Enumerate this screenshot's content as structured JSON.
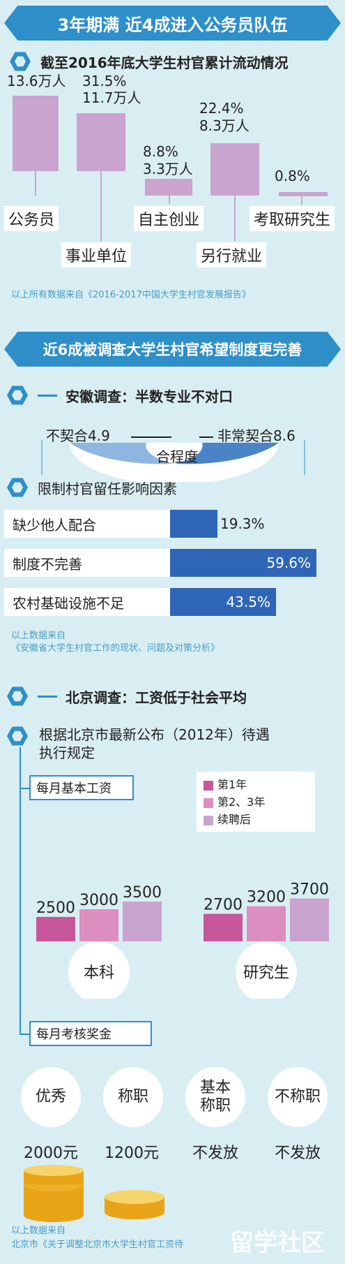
{
  "banner1": "3年期满 近4成进入公务员队伍",
  "sec1": {
    "title": "截至2016年底大学生村官累计流动情况",
    "items": [
      {
        "label": "公务员",
        "pct": "",
        "count": "13.6万人"
      },
      {
        "label": "事业单位",
        "pct": "31.5%",
        "count": "11.7万人"
      },
      {
        "label": "自主创业",
        "pct": "8.8%",
        "count": "3.3万人"
      },
      {
        "label": "另行就业",
        "pct": "22.4%",
        "count": "8.3万人"
      },
      {
        "label": "考取研究生",
        "pct": "0.8%",
        "count": ""
      }
    ],
    "source": "以上所有数据来自《2016-2017中国大学生村官发展报告》"
  },
  "banner2": "近6成被调查大学生村官希望制度更完善",
  "anhui": {
    "title": "安徽调查：半数专业不对口",
    "left_label": "不契合4.9",
    "right_label": "非常契合8.6",
    "center_label": "合程度"
  },
  "factors": {
    "title": "限制村官留任影响因素",
    "rows": [
      {
        "label": "缺少他人配合",
        "value": "19.3%",
        "pct": 19.3
      },
      {
        "label": "制度不完善",
        "value": "59.6%",
        "pct": 59.6
      },
      {
        "label": "农村基础设施不足",
        "value": "43.5%",
        "pct": 43.5
      }
    ],
    "source1": "以上数据来自",
    "source2": "《安徽省大学生村官工作的现状、问题及对策分析》"
  },
  "beijing": {
    "title": "北京调查：工资低于社会平均",
    "sub1": "根据北京市最新公布（2012年）待遇",
    "sub2": "执行规定",
    "salary_title": "每月基本工资",
    "legend": [
      "第1年",
      "第2、3年",
      "续聘后"
    ],
    "colors": [
      "#c8569b",
      "#dd8ec0",
      "#c9a4cf"
    ],
    "groups": [
      {
        "name": "本科",
        "values": [
          2500,
          3000,
          3500
        ],
        "labels": [
          "2500",
          "3000",
          "3500"
        ]
      },
      {
        "name": "研究生",
        "values": [
          2700,
          3200,
          3700
        ],
        "labels": [
          "2700",
          "3200",
          "3700"
        ]
      }
    ],
    "bonus_title": "每月考核奖金",
    "bonus": [
      {
        "grade": "优秀",
        "amount": "2000元"
      },
      {
        "grade": "称职",
        "amount": "1200元"
      },
      {
        "grade": "基本\n称职",
        "amount": "不发放"
      },
      {
        "grade": "不称职",
        "amount": "不发放"
      }
    ],
    "source1": "以上数据来自",
    "source2": "北京市《关于调整北京市大学生村官工资待",
    "watermark": "留学社区"
  }
}
